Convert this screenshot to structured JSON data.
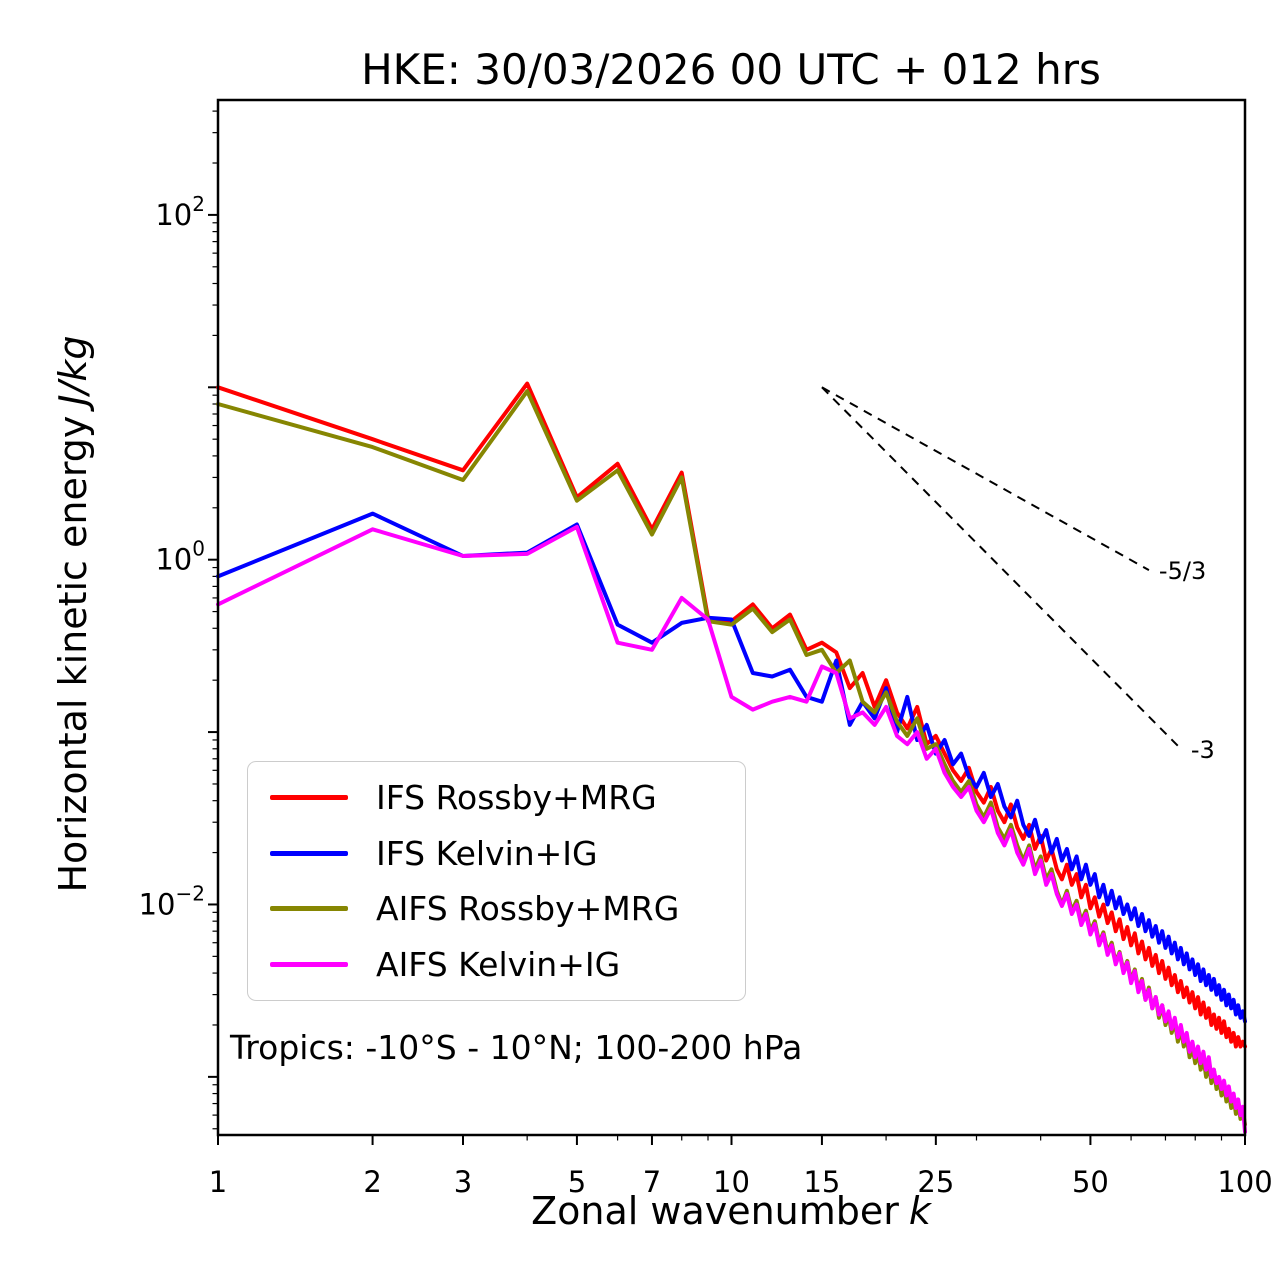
{
  "labels": {
    "xlabel_text": "Zonal wavenumber",
    "xlabel_italic": "k",
    "ylabel_text": "Horizontal kinetic energy",
    "ylabel_italic": "J/kg",
    "annotation": "Tropics: -10°S - 10°N; 100-200 hPa"
  },
  "chart_data": {
    "type": "line",
    "title": "HKE: 30/03/2026 00 UTC + 012 hrs",
    "xlabel": "Zonal wavenumber k",
    "ylabel": "Horizontal kinetic energy J/kg",
    "x_scale": "log",
    "y_scale": "log",
    "xlim": [
      1,
      100
    ],
    "ylim": [
      0.00046,
      464
    ],
    "x_ticks": [
      1,
      2,
      3,
      5,
      7,
      10,
      15,
      25,
      50,
      100
    ],
    "x_minor_ticks": [
      4,
      6,
      8,
      9,
      20,
      30,
      40,
      60,
      70,
      80,
      90
    ],
    "y_label_exponents": [
      -2,
      0,
      2
    ],
    "y_major_exponents": [
      -3,
      -2,
      -1,
      0,
      1,
      2
    ],
    "legend_position": "lower left",
    "x": [
      1,
      2,
      3,
      4,
      5,
      6,
      7,
      8,
      9,
      10,
      11,
      12,
      13,
      14,
      15,
      16,
      17,
      18,
      19,
      20,
      21,
      22,
      23,
      24,
      25,
      26,
      27,
      28,
      29,
      30,
      31,
      32,
      33,
      34,
      35,
      36,
      37,
      38,
      39,
      40,
      41,
      42,
      43,
      44,
      45,
      46,
      47,
      48,
      49,
      50,
      51,
      52,
      53,
      54,
      55,
      56,
      57,
      58,
      59,
      60,
      61,
      62,
      63,
      64,
      65,
      66,
      67,
      68,
      69,
      70,
      71,
      72,
      73,
      74,
      75,
      76,
      77,
      78,
      79,
      80,
      81,
      82,
      83,
      84,
      85,
      86,
      87,
      88,
      89,
      90,
      91,
      92,
      93,
      94,
      95,
      96,
      97,
      98,
      99,
      100
    ],
    "series": [
      {
        "name": "IFS Rossby+MRG",
        "color": "#ff0000",
        "values": [
          10.0,
          5.0,
          3.3,
          10.5,
          2.3,
          3.6,
          1.5,
          3.2,
          0.46,
          0.44,
          0.55,
          0.4,
          0.48,
          0.3,
          0.33,
          0.29,
          0.18,
          0.22,
          0.14,
          0.2,
          0.13,
          0.105,
          0.14,
          0.085,
          0.095,
          0.075,
          0.06,
          0.052,
          0.062,
          0.045,
          0.039,
          0.048,
          0.035,
          0.03,
          0.038,
          0.028,
          0.024,
          0.029,
          0.021,
          0.025,
          0.018,
          0.021,
          0.016,
          0.014,
          0.017,
          0.013,
          0.015,
          0.011,
          0.013,
          0.0095,
          0.011,
          0.0085,
          0.01,
          0.0078,
          0.009,
          0.007,
          0.0082,
          0.0063,
          0.0074,
          0.0058,
          0.0068,
          0.0052,
          0.0061,
          0.0048,
          0.0056,
          0.0044,
          0.0051,
          0.004,
          0.0047,
          0.0037,
          0.0043,
          0.0034,
          0.0039,
          0.0031,
          0.0036,
          0.0029,
          0.0033,
          0.0027,
          0.0031,
          0.0025,
          0.0029,
          0.0023,
          0.0027,
          0.0022,
          0.0025,
          0.002,
          0.0023,
          0.0019,
          0.0022,
          0.0018,
          0.0021,
          0.0017,
          0.0019,
          0.0016,
          0.0018,
          0.0015,
          0.0017,
          0.0015,
          0.0016,
          0.0015
        ]
      },
      {
        "name": "IFS Kelvin+IG",
        "color": "#0000ff",
        "values": [
          0.8,
          1.85,
          1.05,
          1.1,
          1.6,
          0.42,
          0.33,
          0.43,
          0.46,
          0.45,
          0.22,
          0.21,
          0.23,
          0.16,
          0.15,
          0.26,
          0.11,
          0.15,
          0.12,
          0.18,
          0.1,
          0.16,
          0.09,
          0.11,
          0.075,
          0.09,
          0.065,
          0.075,
          0.055,
          0.048,
          0.058,
          0.042,
          0.05,
          0.037,
          0.032,
          0.04,
          0.029,
          0.025,
          0.031,
          0.023,
          0.027,
          0.02,
          0.024,
          0.018,
          0.021,
          0.016,
          0.019,
          0.014,
          0.017,
          0.013,
          0.015,
          0.011,
          0.013,
          0.01,
          0.012,
          0.0095,
          0.011,
          0.0088,
          0.01,
          0.0082,
          0.0095,
          0.0075,
          0.0088,
          0.007,
          0.0081,
          0.0065,
          0.0075,
          0.006,
          0.007,
          0.0056,
          0.0065,
          0.0052,
          0.006,
          0.0048,
          0.0056,
          0.0045,
          0.0052,
          0.0042,
          0.0048,
          0.0039,
          0.0045,
          0.0036,
          0.0042,
          0.0034,
          0.0039,
          0.0032,
          0.0037,
          0.003,
          0.0034,
          0.0028,
          0.0032,
          0.0026,
          0.003,
          0.0025,
          0.0028,
          0.0023,
          0.0026,
          0.0022,
          0.0024,
          0.0021
        ]
      },
      {
        "name": "AIFS Rossby+MRG",
        "color": "#868602",
        "values": [
          8.0,
          4.5,
          2.9,
          9.5,
          2.2,
          3.3,
          1.4,
          3.0,
          0.44,
          0.42,
          0.52,
          0.38,
          0.45,
          0.28,
          0.3,
          0.22,
          0.26,
          0.15,
          0.13,
          0.17,
          0.115,
          0.095,
          0.12,
          0.08,
          0.085,
          0.065,
          0.052,
          0.045,
          0.052,
          0.038,
          0.032,
          0.039,
          0.028,
          0.024,
          0.029,
          0.022,
          0.018,
          0.022,
          0.016,
          0.019,
          0.014,
          0.016,
          0.012,
          0.01,
          0.012,
          0.0092,
          0.0105,
          0.008,
          0.0092,
          0.007,
          0.008,
          0.006,
          0.0069,
          0.0053,
          0.006,
          0.0046,
          0.0053,
          0.0041,
          0.0047,
          0.0036,
          0.0042,
          0.0032,
          0.0037,
          0.0028,
          0.0033,
          0.0025,
          0.0029,
          0.0022,
          0.0026,
          0.002,
          0.0023,
          0.0018,
          0.0021,
          0.0016,
          0.0019,
          0.0015,
          0.0017,
          0.0013,
          0.0015,
          0.0012,
          0.0014,
          0.0011,
          0.0013,
          0.001,
          0.0012,
          0.00092,
          0.0011,
          0.00085,
          0.00098,
          0.00078,
          0.0009,
          0.00072,
          0.00082,
          0.00066,
          0.00076,
          0.00061,
          0.0007,
          0.00057,
          0.00064,
          0.00053
        ]
      },
      {
        "name": "AIFS Kelvin+IG",
        "color": "#ff00ff",
        "values": [
          0.55,
          1.5,
          1.05,
          1.08,
          1.55,
          0.33,
          0.3,
          0.6,
          0.45,
          0.16,
          0.135,
          0.15,
          0.16,
          0.15,
          0.24,
          0.22,
          0.12,
          0.13,
          0.11,
          0.14,
          0.095,
          0.085,
          0.1,
          0.07,
          0.08,
          0.058,
          0.048,
          0.042,
          0.048,
          0.035,
          0.03,
          0.036,
          0.026,
          0.022,
          0.027,
          0.02,
          0.017,
          0.021,
          0.015,
          0.018,
          0.013,
          0.015,
          0.0115,
          0.0098,
          0.0115,
          0.0088,
          0.01,
          0.0076,
          0.0088,
          0.0067,
          0.0077,
          0.0058,
          0.0067,
          0.0051,
          0.0058,
          0.0045,
          0.0052,
          0.004,
          0.0046,
          0.0035,
          0.0041,
          0.0031,
          0.0036,
          0.0028,
          0.0032,
          0.0025,
          0.0029,
          0.0023,
          0.0026,
          0.0021,
          0.0024,
          0.0019,
          0.0022,
          0.0017,
          0.002,
          0.0016,
          0.0018,
          0.0014,
          0.0016,
          0.0013,
          0.0015,
          0.0012,
          0.0014,
          0.0011,
          0.0013,
          0.001,
          0.0011,
          0.00092,
          0.001,
          0.00085,
          0.00095,
          0.00078,
          0.00088,
          0.00072,
          0.0008,
          0.00066,
          0.00074,
          0.0006,
          0.00067,
          0.00048
        ]
      }
    ],
    "reference_lines": [
      {
        "label": "-5/3",
        "x": [
          15,
          65
        ],
        "y": [
          10,
          0.87
        ]
      },
      {
        "label": "-3",
        "x": [
          15,
          75
        ],
        "y": [
          10,
          0.08
        ]
      }
    ]
  }
}
